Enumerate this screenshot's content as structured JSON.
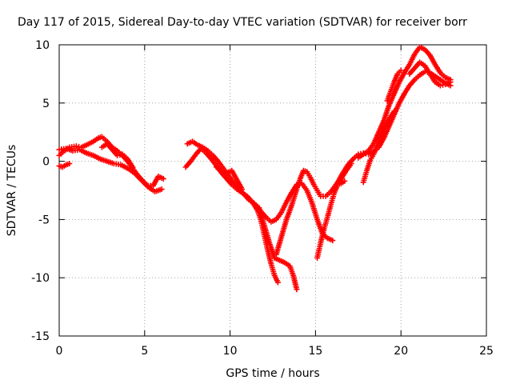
{
  "chart_data": {
    "type": "scatter",
    "title": "Day 117 of 2015, Sidereal Day-to-day VTEC variation (SDTVAR) for receiver borr",
    "xlabel": "GPS time / hours",
    "ylabel": "SDTVAR / TECUs",
    "xlim": [
      0,
      25
    ],
    "ylim": [
      -15,
      10
    ],
    "xticks": [
      "0",
      "5",
      "10",
      "15",
      "20",
      "25"
    ],
    "yticks": [
      "10",
      "5",
      "0",
      "-5",
      "-10",
      "-15"
    ],
    "grid": true,
    "marker": "plus",
    "color": "#ff0000",
    "series": [
      {
        "x": [
          0.0,
          0.3,
          0.6,
          1.0,
          1.3,
          1.6,
          2.0,
          2.3,
          2.5,
          2.8,
          3.1,
          3.4,
          3.7,
          4.0,
          4.3,
          4.6,
          4.9,
          5.2,
          5.5,
          5.8,
          6.1
        ],
        "y": [
          0.5,
          0.9,
          1.2,
          1.3,
          1.2,
          1.4,
          1.7,
          2.0,
          2.1,
          1.7,
          1.2,
          0.9,
          0.5,
          0.0,
          -0.6,
          -1.2,
          -1.7,
          -2.1,
          -2.1,
          -1.3,
          -1.5
        ]
      },
      {
        "x": [
          0.0,
          0.4,
          0.8,
          1.2,
          1.6,
          2.0,
          2.4,
          2.8,
          3.2,
          3.6,
          4.0,
          4.4,
          4.8,
          5.2,
          5.6,
          6.0
        ],
        "y": [
          1.0,
          1.1,
          0.9,
          1.0,
          0.7,
          0.5,
          0.2,
          0.0,
          -0.2,
          -0.3,
          -0.6,
          -1.0,
          -1.6,
          -2.2,
          -2.6,
          -2.4
        ]
      },
      {
        "x": [
          0.0,
          0.2,
          0.4,
          0.6
        ],
        "y": [
          -0.4,
          -0.5,
          -0.3,
          -0.2
        ]
      },
      {
        "x": [
          2.5,
          2.8,
          3.1,
          3.4,
          3.7,
          4.0,
          4.3
        ],
        "y": [
          1.2,
          1.5,
          1.0,
          0.5,
          0.6,
          0.2,
          -0.5
        ]
      },
      {
        "x": [
          7.5,
          7.8,
          8.1,
          8.4,
          8.7,
          9.0,
          9.3,
          9.6,
          9.9,
          10.2,
          10.5,
          10.8,
          11.1,
          11.4,
          11.7,
          12.0,
          12.3,
          12.6,
          12.9,
          13.2,
          13.5,
          13.7,
          13.9
        ],
        "y": [
          1.5,
          1.7,
          1.4,
          1.2,
          0.9,
          0.5,
          0.0,
          -0.6,
          -1.2,
          -1.8,
          -2.3,
          -2.8,
          -3.3,
          -3.6,
          -4.0,
          -5.5,
          -7.0,
          -8.3,
          -8.5,
          -8.7,
          -9.0,
          -9.8,
          -11.0
        ]
      },
      {
        "x": [
          7.4,
          7.7,
          8.0,
          8.3,
          8.6,
          8.9,
          9.2,
          9.5,
          9.8,
          10.1,
          10.4,
          10.7,
          11.0,
          11.3,
          11.6,
          11.8,
          12.0,
          12.2,
          12.4,
          12.6,
          12.8
        ],
        "y": [
          -0.5,
          0.0,
          0.6,
          1.1,
          0.7,
          0.2,
          -0.4,
          -1.0,
          -1.5,
          -2.0,
          -2.4,
          -2.7,
          -3.0,
          -3.5,
          -4.2,
          -5.0,
          -6.3,
          -7.6,
          -8.8,
          -9.8,
          -10.4
        ]
      },
      {
        "x": [
          9.2,
          9.5,
          9.8,
          10.1,
          10.4,
          10.7
        ],
        "y": [
          -0.5,
          -0.9,
          -1.0,
          -0.8,
          -1.6,
          -2.4
        ]
      },
      {
        "x": [
          11.5,
          11.8,
          12.1,
          12.4,
          12.7,
          13.0,
          13.3,
          13.6,
          13.9,
          14.2,
          14.5,
          14.8,
          15.1,
          15.4,
          15.7,
          16.0
        ],
        "y": [
          -3.8,
          -4.3,
          -4.8,
          -5.2,
          -5.0,
          -4.4,
          -3.5,
          -2.7,
          -2.0,
          -1.9,
          -2.5,
          -3.6,
          -5.0,
          -6.2,
          -6.6,
          -6.8
        ]
      },
      {
        "x": [
          12.7,
          13.0,
          13.3,
          13.6,
          13.9,
          14.1,
          14.3,
          14.5,
          14.7,
          14.9,
          15.1,
          15.3,
          15.6,
          15.9,
          16.2,
          16.5,
          16.8,
          17.1
        ],
        "y": [
          -8.0,
          -6.5,
          -5.0,
          -3.8,
          -2.4,
          -1.5,
          -0.8,
          -0.9,
          -1.4,
          -2.0,
          -2.5,
          -3.0,
          -3.0,
          -2.6,
          -2.0,
          -1.5,
          -0.8,
          -0.2
        ]
      },
      {
        "x": [
          15.1,
          15.3,
          15.5,
          15.7,
          15.9,
          16.1,
          16.3,
          16.5,
          16.7
        ],
        "y": [
          -8.3,
          -7.0,
          -5.8,
          -4.8,
          -3.7,
          -2.7,
          -2.0,
          -1.9,
          -1.7
        ]
      },
      {
        "x": [
          16.3,
          16.6,
          16.9,
          17.2,
          17.5,
          17.8,
          18.1,
          18.4,
          18.7,
          19.0,
          19.3,
          19.6,
          19.9,
          20.2,
          20.5,
          20.8,
          21.1,
          21.4,
          21.7,
          22.0,
          22.3,
          22.6,
          22.9
        ],
        "y": [
          -1.8,
          -1.0,
          -0.3,
          0.2,
          0.6,
          0.7,
          0.6,
          0.8,
          1.2,
          2.0,
          3.0,
          4.0,
          5.0,
          5.8,
          6.5,
          7.0,
          7.4,
          7.7,
          7.6,
          7.3,
          7.0,
          6.7,
          6.5
        ]
      },
      {
        "x": [
          17.5,
          17.8,
          18.1,
          18.4,
          18.7,
          19.0,
          19.3,
          19.6,
          19.9,
          20.2,
          20.5,
          20.8,
          21.1,
          21.4,
          21.7,
          22.0,
          22.3,
          22.6,
          22.9
        ],
        "y": [
          0.3,
          0.6,
          0.9,
          1.5,
          2.5,
          3.5,
          4.8,
          5.8,
          6.8,
          7.6,
          8.3,
          9.2,
          9.8,
          9.6,
          9.1,
          8.3,
          7.6,
          7.2,
          7.0
        ]
      },
      {
        "x": [
          17.8,
          18.0,
          18.2,
          18.4,
          18.7,
          19.0,
          19.3,
          19.6
        ],
        "y": [
          -1.8,
          -0.8,
          0.1,
          0.6,
          1.8,
          2.8,
          3.6,
          4.3
        ]
      },
      {
        "x": [
          19.2,
          19.4,
          19.6,
          19.8,
          20.0
        ],
        "y": [
          5.2,
          6.0,
          6.8,
          7.5,
          7.8
        ]
      },
      {
        "x": [
          20.5,
          20.8,
          21.1,
          21.4,
          21.7,
          22.0,
          22.3,
          22.6,
          22.9
        ],
        "y": [
          7.5,
          8.0,
          8.5,
          8.2,
          7.5,
          6.8,
          6.5,
          6.6,
          6.8
        ]
      }
    ]
  }
}
